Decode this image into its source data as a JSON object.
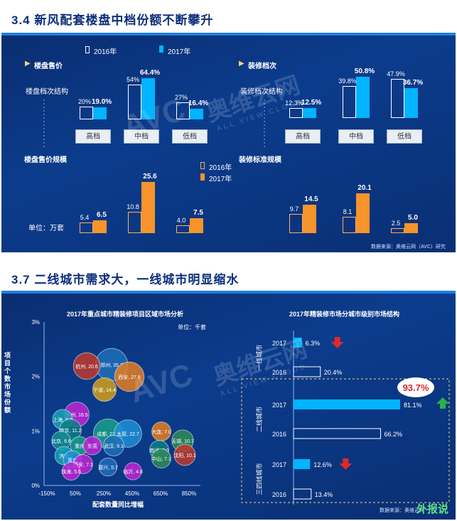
{
  "slide1": {
    "title": "3.4  新风配套楼盘中档份额不断攀升",
    "legend_2016": "2016年",
    "legend_2017": "2017年",
    "left_header": "楼盘售价",
    "right_header": "装修档次",
    "left_top_label": "楼盘档次结构",
    "right_top_label": "装修档次结构",
    "left_bottom_label": "楼盘售价规模",
    "right_bottom_label": "装修标准规模",
    "unit": "单位：万套",
    "source": "数据来源：奥维云网（AVC）研究",
    "categories": [
      "高档",
      "中档",
      "低档"
    ],
    "watermark": "奥维云网",
    "watermark_sub": "ALL VIEW CLOUD"
  },
  "slide2": {
    "title": "3.7 二线城市需求大，一线城市明显缩水",
    "watermark": "奥维云网",
    "watermark_sub": "ALL VIEW CLOUD",
    "source": "数据来源：奥维云网",
    "logo_text": "外报说"
  },
  "chart_data": [
    {
      "type": "bar",
      "title": "",
      "categories": [
        "高档",
        "中档",
        "低档"
      ],
      "series": [
        {
          "name": "2016年",
          "values": [
            "20%",
            "54%",
            "27%"
          ]
        },
        {
          "name": "2017年",
          "values": [
            "19.0%",
            "64.4%",
            "16.4%"
          ]
        }
      ]
    },
    {
      "type": "bar",
      "title": "",
      "categories": [
        "高档",
        "中档",
        "低档"
      ],
      "series": [
        {
          "name": "2016年",
          "values": [
            "12.3%",
            "39.8%",
            "47.9%"
          ]
        },
        {
          "name": "2017年",
          "values": [
            "12.5%",
            "50.8%",
            "36.7%"
          ]
        }
      ]
    },
    {
      "type": "bar",
      "title": "",
      "categories": [
        "高档",
        "中档",
        "低档"
      ],
      "series": [
        {
          "name": "2016年",
          "values": [
            "5.4",
            "10.8",
            "4.0"
          ]
        },
        {
          "name": "2017年",
          "values": [
            "6.5",
            "25.6",
            "7.5"
          ]
        }
      ]
    },
    {
      "type": "bar",
      "title": "",
      "categories": [
        "高档",
        "中档",
        "低档"
      ],
      "series": [
        {
          "name": "2016年",
          "values": [
            "9.7",
            "8.1",
            "2.5"
          ]
        },
        {
          "name": "2017年",
          "values": [
            "14.5",
            "20.1",
            "5.0"
          ]
        }
      ]
    },
    {
      "type": "scatter",
      "title": "2017年重点城市精装修项目区域市场分析",
      "unit": "单位：千套",
      "xlabel": "配套数量同比增幅",
      "ylabel": "项目个数市场份额",
      "x_ticks": [
        "-150%",
        "50%",
        "250%",
        "450%",
        "650%",
        "850%"
      ],
      "y_ticks": [
        "0%",
        "1%",
        "2%",
        "3%"
      ],
      "points": [
        {
          "city": "郑州",
          "value": "35.7",
          "color": "#1f6fb8"
        },
        {
          "city": "杭州",
          "value": "20.6",
          "color": "#c0392b"
        },
        {
          "city": "西安",
          "value": "27.8",
          "color": "#e67e22"
        },
        {
          "city": "宁波",
          "value": "14.4",
          "color": "#d4a017"
        },
        {
          "city": "苏州",
          "value": "16.5",
          "color": "#c026d3"
        },
        {
          "city": "上海",
          "value": "8.2",
          "color": "#17a2b8"
        },
        {
          "city": "南京",
          "value": "11.2",
          "color": "#0e7c86"
        },
        {
          "city": "成都",
          "value": "27.2",
          "color": "#1aa08a"
        },
        {
          "city": "太原",
          "value": "22.7",
          "color": "#1f8fd6"
        },
        {
          "city": "大连",
          "value": "7.0",
          "color": "#e67e22"
        },
        {
          "city": "无锡",
          "value": "10.7",
          "color": "#2e8b57"
        },
        {
          "city": "北京",
          "value": "6.6",
          "color": "#138d90"
        },
        {
          "city": "重庆",
          "value": "",
          "color": "#1aa08a"
        },
        {
          "city": "东莞",
          "value": "",
          "color": "#c026d3"
        },
        {
          "city": "武汉",
          "value": "9.1",
          "color": "#1f6fb8"
        },
        {
          "city": "南通",
          "value": "7.0",
          "color": "#0e7c86"
        },
        {
          "city": "沈阳",
          "value": "10.1",
          "color": "#c0392b"
        },
        {
          "city": "中山",
          "value": "7.1",
          "color": "#2e8b57"
        },
        {
          "city": "济南",
          "value": "",
          "color": "#17a2b8"
        },
        {
          "city": "青岛",
          "value": "",
          "color": "#1f8fd6"
        },
        {
          "city": "西安",
          "value": "7.1",
          "color": "#c026d3"
        },
        {
          "city": "嘉兴",
          "value": "5.7",
          "color": "#1f6fb8"
        },
        {
          "city": "珠海",
          "value": "5.5",
          "color": "#c026d3"
        },
        {
          "city": "临沂",
          "value": "4.8",
          "color": "#c026d3"
        }
      ]
    },
    {
      "type": "bar",
      "title": "2017年精装修市场分城市级别市场结构",
      "groups": [
        "一线城市",
        "二线城市",
        "三四线城市"
      ],
      "rows": [
        {
          "year": "2017",
          "value": "6.3%",
          "trend": "down"
        },
        {
          "year": "2016",
          "value": "20.4%"
        },
        {
          "year": "2017",
          "value": "81.1%"
        },
        {
          "year": "2016",
          "value": "66.2%"
        },
        {
          "year": "2017",
          "value": "12.6%",
          "trend": "down"
        },
        {
          "year": "2016",
          "value": "13.4%"
        }
      ],
      "callout": "93.7%"
    }
  ]
}
